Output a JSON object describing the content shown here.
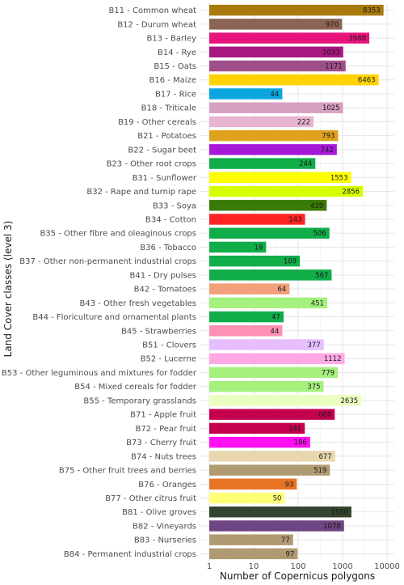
{
  "chart_data": {
    "type": "bar",
    "orientation": "horizontal",
    "xlabel": "Number of Copernicus polygons",
    "ylabel": "Land Cover classes (level 3)",
    "x_scale": "log10",
    "xlim": [
      1,
      10000
    ],
    "x_ticks": [
      1,
      10,
      100,
      1000,
      10000
    ],
    "x_tick_labels": [
      "1",
      "10",
      "100",
      "1000",
      "10000"
    ],
    "grid": true,
    "legend": "none",
    "categories": [
      "B11 - Common wheat",
      "B12 - Durum wheat",
      "B13 - Barley",
      "B14 - Rye",
      "B15 - Oats",
      "B16 - Maize",
      "B17 - Rice",
      "B18 - Triticale",
      "B19 - Other cereals",
      "B21 - Potatoes",
      "B22 - Sugar beet",
      "B23 - Other root crops",
      "B31 - Sunflower",
      "B32 - Rape and turnip rape",
      "B33 - Soya",
      "B34 - Cotton",
      "B35 - Other fibre and oleaginous crops",
      "B36 - Tobacco",
      "B37 - Other non-permanent industrial crops",
      "B41 - Dry pulses",
      "B42 - Tomatoes",
      "B43 - Other fresh vegetables",
      "B44 - Floriculture and ornamental plants",
      "B45 - Strawberries",
      "B51 - Clovers",
      "B52 - Lucerne",
      "B53 - Other leguminous and mixtures for fodder",
      "B54 - Mixed cereals for fodder",
      "B55 - Temporary grasslands",
      "B71 - Apple fruit",
      "B72 - Pear fruit",
      "B73 - Cherry fruit",
      "B74 - Nuts trees",
      "B75 - Other fruit trees and berries",
      "B76 - Oranges",
      "B77 - Other citrus fruit",
      "B81 - Olive groves",
      "B82 - Vineyards",
      "B83 - Nurseries",
      "B84 - Permanent industrial crops"
    ],
    "values": [
      8353,
      970,
      3988,
      1033,
      1171,
      6463,
      44,
      1025,
      222,
      793,
      742,
      244,
      1553,
      2856,
      439,
      143,
      506,
      19,
      109,
      567,
      64,
      451,
      47,
      44,
      377,
      1112,
      779,
      375,
      2635,
      666,
      141,
      186,
      677,
      519,
      93,
      50,
      1580,
      1078,
      77,
      97
    ],
    "colors": [
      "#a87a0c",
      "#8c6456",
      "#e8137d",
      "#a6177f",
      "#9e4f8a",
      "#ffd200",
      "#0aa6e0",
      "#d6a0c2",
      "#e8b4d2",
      "#e0a21c",
      "#a818d8",
      "#10ad48",
      "#ffff00",
      "#d8ff00",
      "#3a7a06",
      "#ff2424",
      "#10ad48",
      "#10ad48",
      "#10ad48",
      "#10ad48",
      "#f2a07a",
      "#a6f07e",
      "#10ad48",
      "#ff90b4",
      "#e6beff",
      "#ffa8e6",
      "#a6f07e",
      "#a6f07e",
      "#eaffc0",
      "#c4004e",
      "#c4004e",
      "#ff10f2",
      "#e8d6ae",
      "#b09a72",
      "#e87424",
      "#ffff78",
      "#344430",
      "#6e4482",
      "#b09a72",
      "#b09a72"
    ]
  }
}
